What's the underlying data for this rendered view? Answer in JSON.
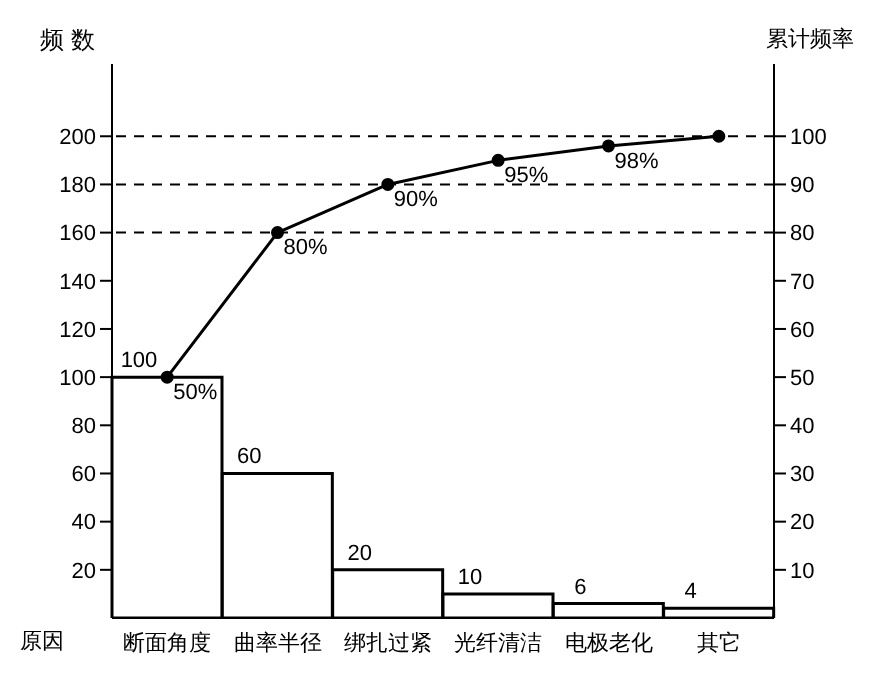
{
  "chart_data": {
    "type": "bar",
    "categories": [
      "断面角度",
      "曲率半径",
      "绑扎过紧",
      "光纤清洁",
      "电极老化",
      "其它"
    ],
    "xlabel": "原因",
    "ylabel": "频 数",
    "y2label": "累计频率",
    "series": [
      {
        "color": "#ffffff",
        "values": [
          100,
          60,
          20,
          10,
          6,
          4
        ]
      },
      {
        "type": "line",
        "axis": "y2",
        "color": "#000000",
        "values": [
          50,
          80,
          90,
          95,
          98,
          100
        ],
        "value_labels": [
          "50%",
          "80%",
          "90%",
          "95%",
          "98%",
          null
        ]
      }
    ],
    "data_labels": true,
    "marker": "circle",
    "legend": false,
    "ylim": [
      0,
      230
    ],
    "yticks": [
      20,
      40,
      60,
      80,
      100,
      120,
      140,
      160,
      180,
      200
    ],
    "y2lim": [
      0,
      115
    ],
    "y2ticks": [
      10,
      20,
      30,
      40,
      50,
      60,
      70,
      80,
      90,
      100
    ],
    "ref_lines": [
      {
        "axis": "y2",
        "value": 100,
        "line_style": "dashed"
      },
      {
        "axis": "y2",
        "value": 90,
        "line_style": "dashed"
      },
      {
        "axis": "y2",
        "value": 80,
        "line_style": "dashed"
      }
    ]
  }
}
